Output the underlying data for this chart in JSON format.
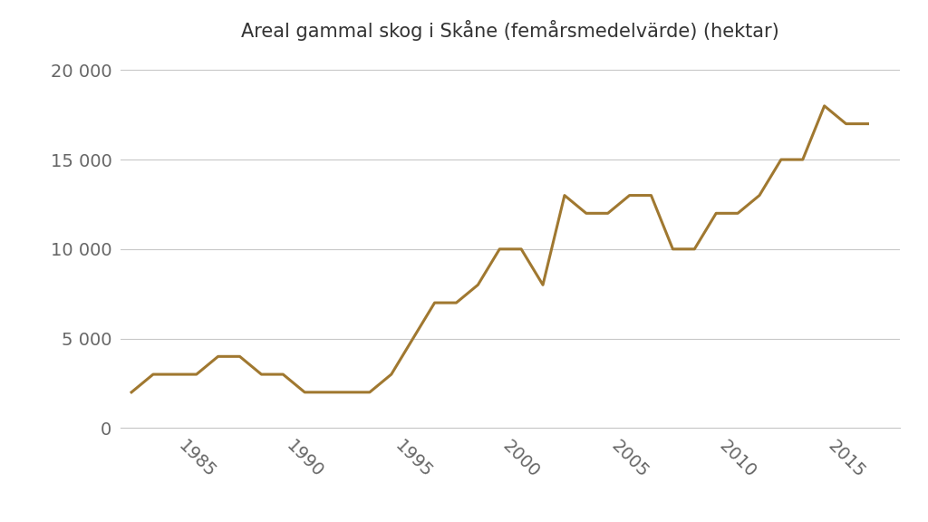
{
  "title": "Areal gammal skog i Skåne (femårsmedelvärde) (hektar)",
  "line_color": "#A07830",
  "background_color": "#ffffff",
  "grid_color": "#c8c8c8",
  "years": [
    1983,
    1984,
    1985,
    1986,
    1987,
    1988,
    1989,
    1990,
    1991,
    1992,
    1993,
    1994,
    1995,
    1996,
    1997,
    1998,
    1999,
    2000,
    2001,
    2002,
    2003,
    2004,
    2005,
    2006,
    2007,
    2008,
    2009,
    2010,
    2011,
    2012,
    2013,
    2014,
    2015,
    2016,
    2017
  ],
  "values": [
    2000,
    3000,
    3000,
    3000,
    4000,
    4000,
    3000,
    3000,
    2000,
    2000,
    2000,
    2000,
    3000,
    5000,
    7000,
    7000,
    8000,
    10000,
    10000,
    8000,
    13000,
    12000,
    12000,
    13000,
    13000,
    10000,
    10000,
    12000,
    12000,
    13000,
    15000,
    15000,
    18000,
    17000,
    17000
  ],
  "xlim": [
    1982.5,
    2018.5
  ],
  "ylim": [
    0,
    21000
  ],
  "yticks": [
    0,
    5000,
    10000,
    15000,
    20000
  ],
  "ytick_labels": [
    "0",
    "5 000",
    "10 000",
    "15 000",
    "20 000"
  ],
  "xticks": [
    1985,
    1990,
    1995,
    2000,
    2005,
    2010,
    2015
  ],
  "line_width": 2.2,
  "title_fontsize": 15,
  "tick_fontsize": 14
}
